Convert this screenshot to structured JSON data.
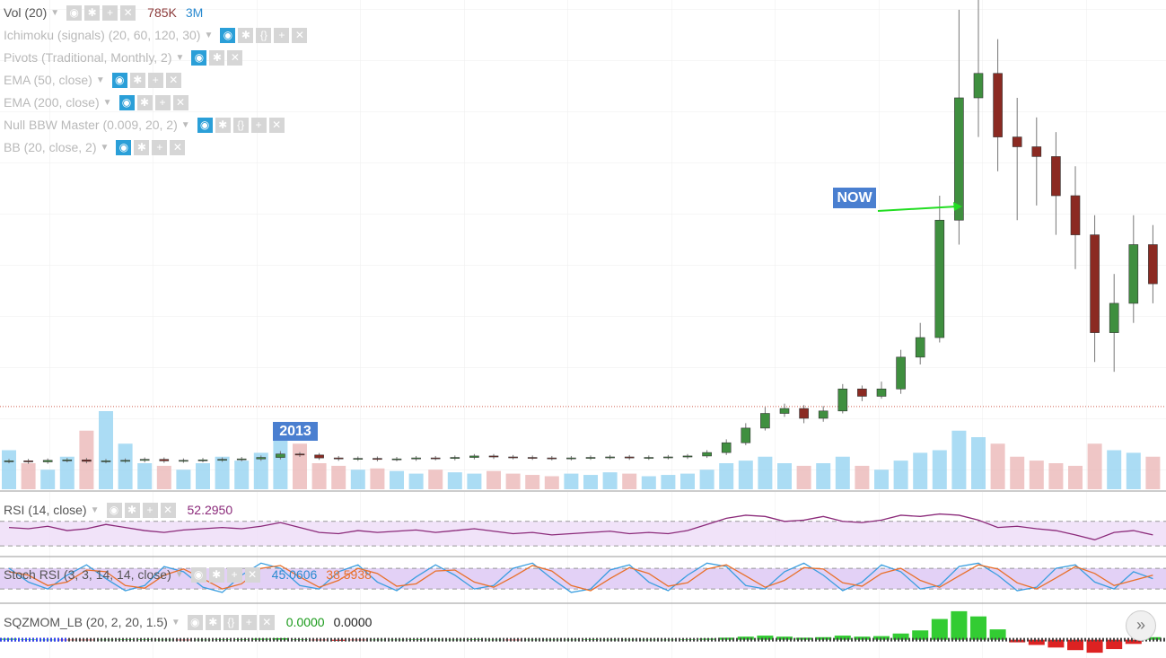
{
  "chart_data": [
    {
      "type": "candlestick",
      "indicators": [
        {
          "label": "Vol (20)",
          "readouts": [
            {
              "text": "785K",
              "color": "#8b3a3a"
            },
            {
              "text": "3M",
              "color": "#2a8ad0"
            }
          ]
        },
        {
          "label": "Ichimoku (signals) (20, 60, 120, 30)"
        },
        {
          "label": "Pivots (Traditional, Monthly, 2)"
        },
        {
          "label": "EMA (50, close)"
        },
        {
          "label": "EMA (200, close)"
        },
        {
          "label": "Null BBW Master (0.009, 20, 2)"
        },
        {
          "label": "BB (20, close, 2)"
        }
      ],
      "annotations": [
        "NOW",
        "2013"
      ],
      "open": [
        5.7,
        5.8,
        5.6,
        5.9,
        6.0,
        5.7,
        5.8,
        5.9,
        6.1,
        5.8,
        5.9,
        6.0,
        6.1,
        6.2,
        6.5,
        7.2,
        7.0,
        6.4,
        6.2,
        6.3,
        6.1,
        6.2,
        6.4,
        6.3,
        6.5,
        6.8,
        6.6,
        6.5,
        6.4,
        6.3,
        6.4,
        6.5,
        6.6,
        6.4,
        6.5,
        6.6,
        6.8,
        7.5,
        9.5,
        12.5,
        15.5,
        16.5,
        14.5,
        16.0,
        20.5,
        19.0,
        20.5,
        27.0,
        31.0,
        55.0,
        80.0,
        85.0,
        72.0,
        70.0,
        68.0,
        60.0,
        52.0,
        32.0,
        38.0,
        50.0
      ],
      "high": [
        6.2,
        6.2,
        6.3,
        6.4,
        6.4,
        6.2,
        6.3,
        6.5,
        6.5,
        6.3,
        6.4,
        6.5,
        6.6,
        6.9,
        7.8,
        7.6,
        7.4,
        6.8,
        6.7,
        6.7,
        6.6,
        6.8,
        6.8,
        6.9,
        7.2,
        7.2,
        7.0,
        6.9,
        6.8,
        6.8,
        6.9,
        7.0,
        7.0,
        6.9,
        7.0,
        7.2,
        8.0,
        10.2,
        13.5,
        16.8,
        17.5,
        17.2,
        17.0,
        21.5,
        21.2,
        22.0,
        28.5,
        34,
        60,
        98,
        100,
        92,
        80,
        76,
        73,
        66,
        56,
        44,
        56,
        54
      ],
      "low": [
        5.3,
        5.2,
        5.2,
        5.5,
        5.3,
        5.3,
        5.4,
        5.5,
        5.4,
        5.4,
        5.5,
        5.6,
        5.7,
        5.8,
        6.1,
        6.6,
        6.0,
        5.8,
        5.8,
        5.7,
        5.7,
        5.8,
        5.9,
        5.9,
        6.1,
        6.2,
        6.1,
        6.0,
        5.9,
        5.9,
        6.0,
        6.1,
        6.0,
        6.0,
        6.1,
        6.2,
        6.4,
        7.0,
        9.0,
        12.0,
        14.8,
        13.5,
        13.8,
        15.5,
        18.0,
        18.5,
        19.5,
        25.5,
        30,
        50,
        72,
        65,
        55,
        58,
        52,
        45,
        26,
        24,
        34,
        38
      ],
      "close": [
        5.8,
        5.6,
        5.9,
        6.0,
        5.7,
        5.8,
        5.9,
        6.1,
        5.8,
        5.9,
        6.0,
        6.1,
        6.2,
        6.5,
        7.2,
        7.0,
        6.4,
        6.2,
        6.3,
        6.1,
        6.2,
        6.4,
        6.3,
        6.5,
        6.8,
        6.6,
        6.5,
        6.4,
        6.3,
        6.4,
        6.5,
        6.6,
        6.4,
        6.5,
        6.6,
        6.8,
        7.5,
        9.5,
        12.5,
        15.5,
        16.5,
        14.5,
        16.0,
        20.5,
        19.0,
        20.5,
        27.0,
        31.0,
        55.0,
        80.0,
        85.0,
        72.0,
        70.0,
        68.0,
        60.0,
        52.0,
        32.0,
        38.0,
        50.0,
        42.0
      ],
      "volume": [
        30,
        20,
        15,
        25,
        45,
        60,
        35,
        20,
        18,
        15,
        20,
        25,
        22,
        28,
        40,
        35,
        20,
        18,
        15,
        16,
        14,
        12,
        15,
        13,
        12,
        14,
        12,
        11,
        10,
        12,
        11,
        13,
        12,
        10,
        11,
        12,
        15,
        20,
        22,
        25,
        20,
        18,
        20,
        25,
        18,
        15,
        22,
        28,
        30,
        45,
        40,
        35,
        25,
        22,
        20,
        18,
        35,
        30,
        28,
        25
      ],
      "ylim": [
        0,
        100
      ],
      "volume_ylim": [
        0,
        100
      ],
      "reference_line": 16.9,
      "up_color": "#3f8f3f",
      "down_color": "#8b2a22",
      "volume_up_color": "#8fd0f0",
      "volume_down_color": "#e9b3b3"
    },
    {
      "type": "line",
      "title": "RSI (14, close)",
      "readouts": [
        {
          "text": "52.2950",
          "color": "#8b2a7a"
        }
      ],
      "values": [
        60,
        58,
        62,
        55,
        58,
        65,
        60,
        55,
        52,
        56,
        58,
        60,
        58,
        62,
        68,
        60,
        52,
        50,
        55,
        52,
        54,
        56,
        52,
        55,
        58,
        54,
        50,
        52,
        48,
        50,
        52,
        54,
        50,
        52,
        50,
        55,
        65,
        75,
        80,
        78,
        70,
        72,
        78,
        70,
        68,
        72,
        80,
        78,
        82,
        80,
        72,
        60,
        62,
        58,
        55,
        48,
        40,
        52,
        55,
        48
      ],
      "color": "#8b2a7a",
      "ylim": [
        20,
        115
      ],
      "bands": [
        30,
        70
      ],
      "band_color": "#eedcf8"
    },
    {
      "type": "line",
      "title": "Stoch RSI (3, 3, 14, 14, close)",
      "readouts": [
        {
          "text": "45.0606",
          "color": "#2a8ad0"
        },
        {
          "text": "38.5938",
          "color": "#e8702a"
        }
      ],
      "series": [
        {
          "color": "#3a9ee0",
          "values": [
            80,
            40,
            20,
            60,
            90,
            50,
            15,
            30,
            85,
            70,
            25,
            10,
            60,
            95,
            80,
            30,
            20,
            70,
            90,
            40,
            15,
            55,
            90,
            60,
            20,
            30,
            80,
            95,
            50,
            10,
            20,
            75,
            90,
            40,
            15,
            60,
            95,
            85,
            30,
            20,
            70,
            95,
            60,
            15,
            40,
            90,
            70,
            20,
            30,
            85,
            95,
            60,
            15,
            25,
            80,
            90,
            40,
            20,
            70,
            50
          ]
        },
        {
          "color": "#e8702a",
          "values": [
            70,
            60,
            30,
            40,
            75,
            70,
            30,
            22,
            60,
            78,
            50,
            20,
            35,
            80,
            88,
            55,
            25,
            45,
            80,
            65,
            28,
            35,
            72,
            75,
            40,
            25,
            55,
            88,
            72,
            30,
            15,
            50,
            82,
            65,
            28,
            38,
            78,
            90,
            58,
            25,
            45,
            82,
            78,
            38,
            28,
            65,
            80,
            45,
            25,
            58,
            90,
            78,
            38,
            20,
            52,
            85,
            65,
            30,
            45,
            60
          ]
        }
      ],
      "ylim": [
        -11,
        101
      ],
      "bands": [
        20,
        80
      ],
      "band_color": "#dcc6f4"
    },
    {
      "type": "bar",
      "title": "SQZMOM_LB (20, 2, 20, 1.5)",
      "readouts": [
        {
          "text": "0.0000",
          "color": "#1a9a1a"
        },
        {
          "text": "0.0000",
          "color": "#222"
        }
      ],
      "values": [
        2,
        1,
        0,
        -1,
        -1,
        0,
        1,
        1,
        0,
        -1,
        0,
        1,
        1,
        2,
        3,
        1,
        -1,
        -2,
        -1,
        0,
        0,
        1,
        0,
        0,
        1,
        0,
        -1,
        0,
        0,
        0,
        1,
        0,
        0,
        0,
        0,
        1,
        2,
        4,
        6,
        8,
        6,
        4,
        5,
        8,
        6,
        7,
        12,
        18,
        40,
        55,
        45,
        20,
        -5,
        -10,
        -15,
        -20,
        -25,
        -18,
        -8,
        5
      ],
      "ylim": [
        -30,
        60
      ],
      "up_color": "#33cc33",
      "down_color": "#dd2222"
    }
  ]
}
